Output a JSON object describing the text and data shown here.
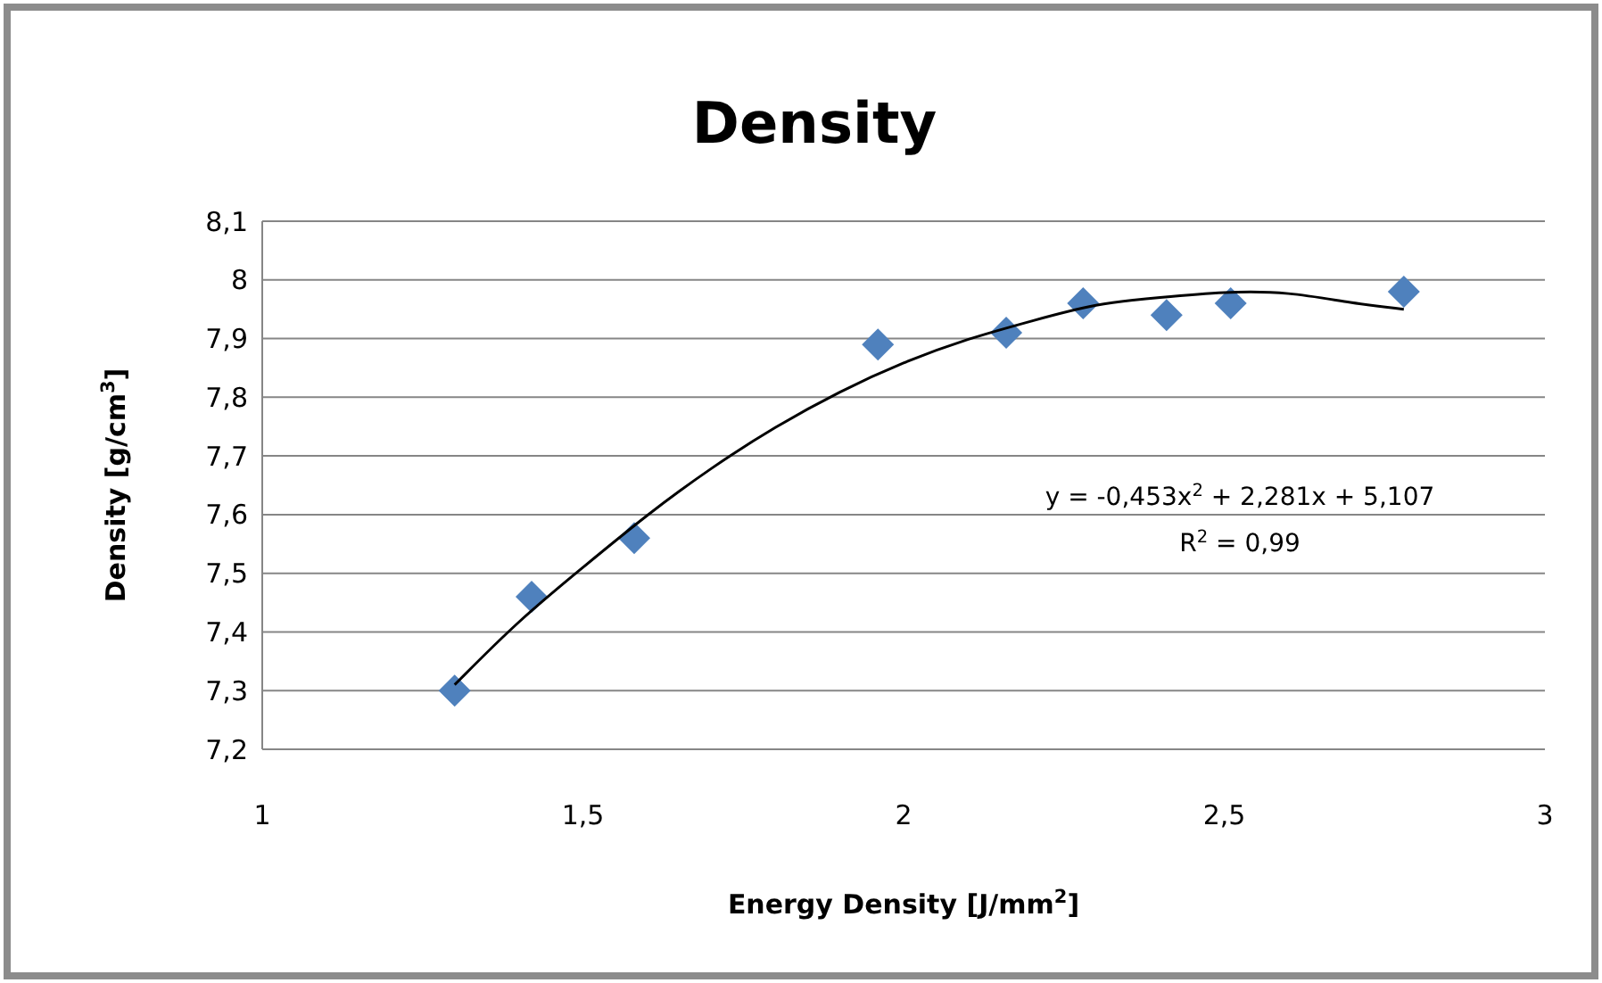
{
  "chart_data": {
    "type": "scatter",
    "title": "Density",
    "xlabel": "Energy Density [J/mm$^{2}$]",
    "ylabel": "Density [g/cm$^{3}$]",
    "xlim": [
      1,
      3
    ],
    "xticks": [
      1,
      {
        "value": 1.5,
        "label": "1,5"
      },
      2,
      {
        "value": 2.5,
        "label": "2,5"
      },
      3
    ],
    "ylim": [
      7.2,
      8.1
    ],
    "yticks": [
      {
        "value": 7.2,
        "label": "7,2"
      },
      {
        "value": 7.3,
        "label": "7,3"
      },
      {
        "value": 7.4,
        "label": "7,4"
      },
      {
        "value": 7.5,
        "label": "7,5"
      },
      {
        "value": 7.6,
        "label": "7,6"
      },
      {
        "value": 7.7,
        "label": "7,7"
      },
      {
        "value": 7.8,
        "label": "7,8"
      },
      {
        "value": 7.9,
        "label": "7,9"
      },
      {
        "value": 8,
        "label": "8"
      },
      {
        "value": 8.1,
        "label": "8,1"
      }
    ],
    "grid": "y",
    "series": [
      {
        "marker": "diamond",
        "color": "#4f81bd",
        "x": [
          1.3,
          1.42,
          1.58,
          1.96,
          2.16,
          2.28,
          2.41,
          2.51,
          2.78
        ],
        "values": [
          7.3,
          7.46,
          7.56,
          7.89,
          7.91,
          7.96,
          7.94,
          7.96,
          7.98
        ]
      },
      {
        "type": "line",
        "marker": "none",
        "color": "#000000",
        "line_style": "solid",
        "x": [
          1.3,
          1.4,
          1.5,
          1.6,
          1.7,
          1.8,
          1.9,
          2.0,
          2.1,
          2.2,
          2.3,
          2.4,
          2.5,
          2.6,
          2.7,
          2.78
        ],
        "values": [
          7.31,
          7.42,
          7.51,
          7.6,
          7.68,
          7.75,
          7.81,
          7.86,
          7.9,
          7.93,
          7.96,
          7.97,
          7.98,
          7.98,
          7.96,
          7.95
        ]
      }
    ],
    "annotations": [
      "y = -0,453x$^{2}$ + 2,281x + 5,107",
      "R$^{2}$ = 0,99"
    ]
  }
}
